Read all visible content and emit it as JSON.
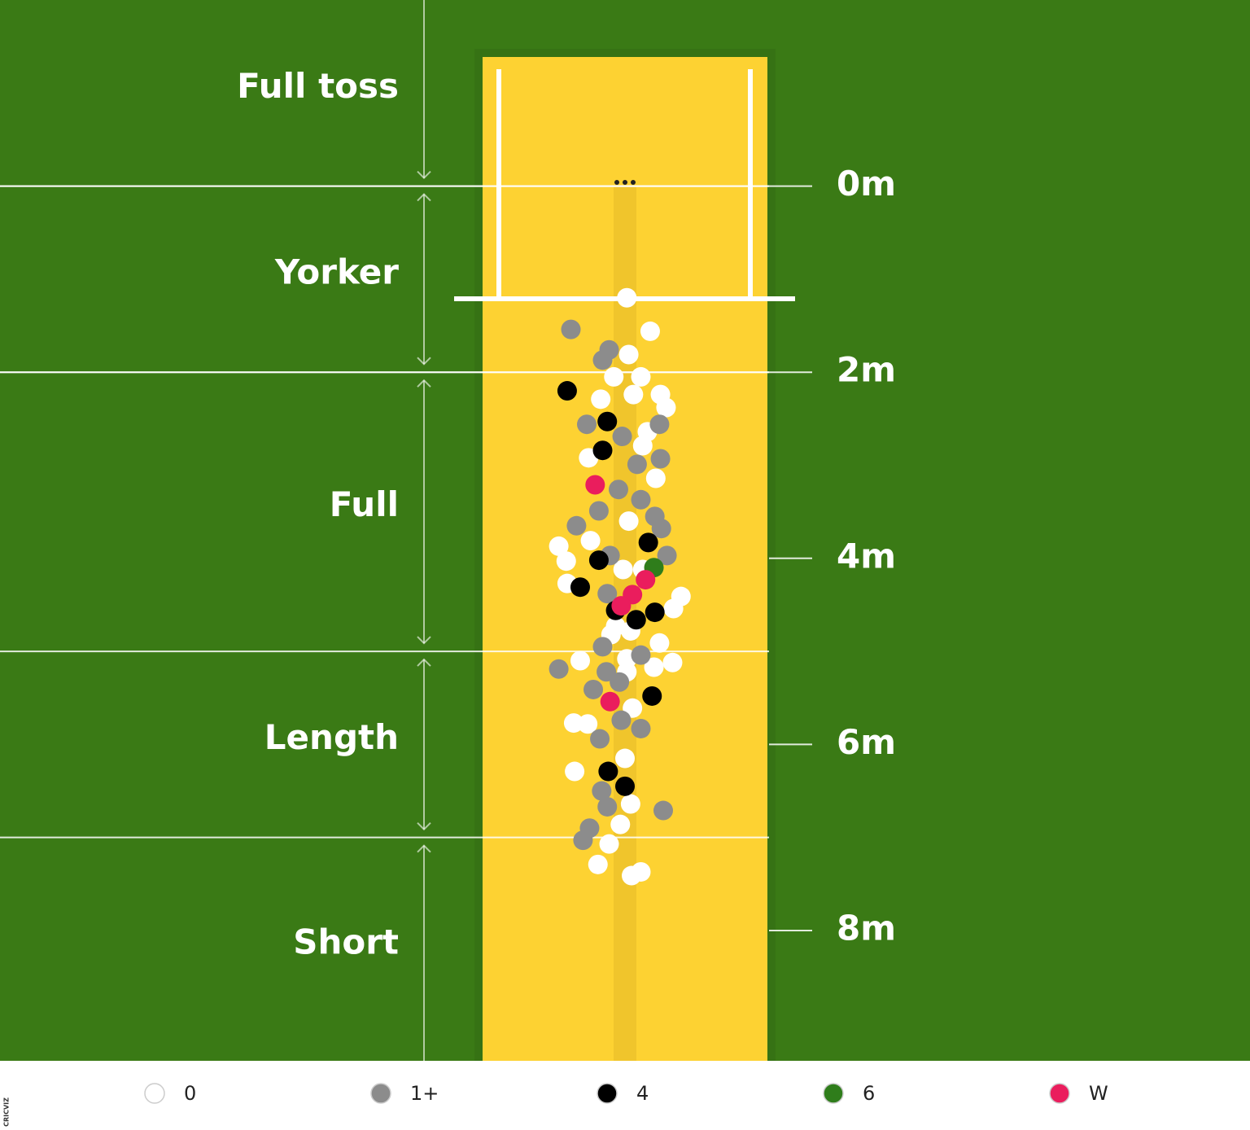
{
  "chart_data": {
    "type": "scatter",
    "xlim": [
      -6.7,
      6.7
    ],
    "ylim": [
      -2,
      9.4
    ],
    "yticks": [
      {
        "value": 0,
        "label": "0m"
      },
      {
        "value": 2,
        "label": "2m"
      },
      {
        "value": 4,
        "label": "4m"
      },
      {
        "value": 6,
        "label": "6m"
      },
      {
        "value": 8,
        "label": "8m"
      }
    ],
    "zones": [
      {
        "label": "Full toss",
        "from": -2,
        "to": 0
      },
      {
        "label": "Yorker",
        "from": 0,
        "to": 2
      },
      {
        "label": "Full",
        "from": 2,
        "to": 5
      },
      {
        "label": "Length",
        "from": 5,
        "to": 7
      },
      {
        "label": "Short",
        "from": 7,
        "to": 9.4
      }
    ],
    "series": [
      {
        "name": "0",
        "color": "#ffffff",
        "x": [
          0.02,
          0.27,
          0.04,
          -0.12,
          0.17,
          0.09,
          0.38,
          0.44,
          -0.26,
          0.24,
          -0.39,
          0.19,
          0.33,
          0.04,
          -0.71,
          -0.63,
          -0.37,
          -0.02,
          -0.62,
          0.6,
          0.52,
          -0.15,
          0.06,
          0.37,
          -0.48,
          0.51,
          0.31,
          0.02,
          0.08,
          -0.55,
          -0.4,
          0,
          -0.54,
          0.06,
          -0.05,
          -0.17,
          -0.29,
          0.07,
          0.17,
          0.19,
          0.02,
          -0.1
        ],
        "y": [
          1.2,
          1.56,
          1.81,
          2.05,
          2.05,
          2.24,
          2.24,
          2.38,
          2.29,
          2.64,
          2.92,
          2.79,
          3.14,
          3.6,
          3.87,
          4.03,
          3.81,
          4.12,
          4.27,
          4.41,
          4.54,
          4.82,
          4.78,
          4.91,
          5.1,
          5.12,
          5.17,
          5.22,
          5.61,
          5.77,
          5.78,
          6.15,
          6.29,
          6.64,
          6.86,
          7.07,
          7.29,
          7.41,
          7.37,
          4.12,
          5.08,
          4.73
        ]
      },
      {
        "name": "1+",
        "color": "#8c8c8c",
        "x": [
          -0.58,
          -0.17,
          -0.24,
          -0.41,
          0.37,
          -0.03,
          0.13,
          0.38,
          -0.07,
          0.17,
          -0.28,
          0.32,
          -0.52,
          0.39,
          -0.16,
          0.45,
          -0.19,
          -0.24,
          0.17,
          -0.71,
          -0.2,
          -0.06,
          -0.34,
          -0.04,
          0.17,
          -0.27,
          -0.25,
          -0.19,
          0.41,
          -0.38,
          -0.45
        ],
        "y": [
          1.54,
          1.76,
          1.87,
          2.56,
          2.56,
          2.69,
          2.99,
          2.93,
          3.26,
          3.37,
          3.49,
          3.55,
          3.65,
          3.68,
          3.97,
          3.97,
          4.38,
          4.95,
          5.04,
          5.19,
          5.22,
          5.33,
          5.41,
          5.74,
          5.83,
          5.94,
          6.5,
          6.67,
          6.71,
          6.9,
          7.03
        ]
      },
      {
        "name": "4",
        "color": "#000000",
        "x": [
          -0.62,
          -0.19,
          -0.24,
          0.25,
          -0.28,
          -0.48,
          -0.1,
          0.12,
          0.32,
          0.29,
          -0.18,
          0
        ],
        "y": [
          2.2,
          2.53,
          2.84,
          3.83,
          4.02,
          4.31,
          4.56,
          4.66,
          4.58,
          5.48,
          6.29,
          6.45
        ]
      },
      {
        "name": "6",
        "color": "#2f7d1b",
        "x": [
          0.31
        ],
        "y": [
          4.1
        ]
      },
      {
        "name": "W",
        "color": "#ea1d5d",
        "x": [
          -0.32,
          0.22,
          0.08,
          -0.04,
          -0.16
        ],
        "y": [
          3.21,
          4.23,
          4.39,
          4.51,
          5.54
        ]
      }
    ],
    "credit": "CRICVIZ"
  }
}
